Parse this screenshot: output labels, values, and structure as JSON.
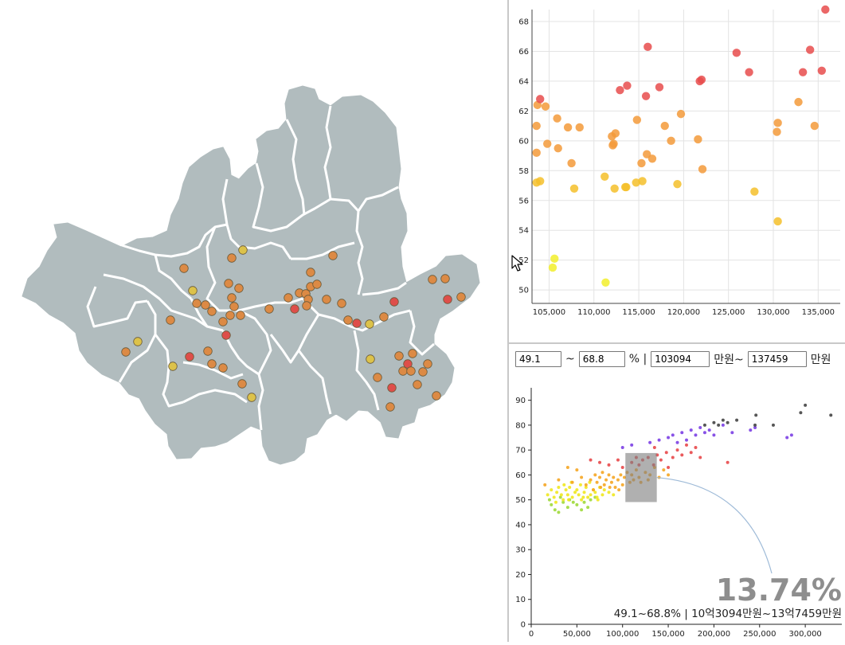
{
  "filters": {
    "pct_min": "49.1",
    "pct_sep": "~",
    "pct_max": "68.8",
    "pct_unit": "% |",
    "price_min": "103094",
    "price_unit_mid": "만원~",
    "price_max": "137459",
    "price_unit_end": "만원"
  },
  "overlay": {
    "percent": "13.74%",
    "caption": "49.1~68.8% | 10억3094만원~13억7459만원"
  },
  "colors": {
    "map_fill": "#b1bcbe",
    "map_border": "#ffffff",
    "grid": "#e3e3e3",
    "brush": "#808080",
    "curve": "#9fbbd8"
  },
  "chart_data": [
    {
      "type": "scatter",
      "title": "",
      "xlabel": "",
      "ylabel": "",
      "xlim": [
        103094,
        137459
      ],
      "ylim": [
        49.1,
        68.8
      ],
      "xticks": [
        "105,000",
        "110,000",
        "115,000",
        "120,000",
        "125,000",
        "130,000",
        "135,000"
      ],
      "xtick_values": [
        105000,
        110000,
        115000,
        120000,
        125000,
        130000,
        135000
      ],
      "yticks": [
        "50",
        "52",
        "54",
        "56",
        "58",
        "60",
        "62",
        "64",
        "66",
        "68"
      ],
      "ytick_values": [
        50,
        52,
        54,
        56,
        58,
        60,
        62,
        64,
        66,
        68
      ],
      "grid": true,
      "points": [
        [
          103600,
          59.2
        ],
        [
          103600,
          61.0
        ],
        [
          103700,
          62.4
        ],
        [
          103600,
          57.2
        ],
        [
          104000,
          57.3
        ],
        [
          104000,
          62.8
        ],
        [
          104600,
          62.3
        ],
        [
          104800,
          59.8
        ],
        [
          105600,
          52.1
        ],
        [
          105400,
          51.5
        ],
        [
          105900,
          61.5
        ],
        [
          106000,
          59.5
        ],
        [
          107100,
          60.9
        ],
        [
          107500,
          58.5
        ],
        [
          107800,
          56.8
        ],
        [
          108400,
          60.9
        ],
        [
          111300,
          50.5
        ],
        [
          111200,
          57.6
        ],
        [
          112000,
          60.3
        ],
        [
          112100,
          59.7
        ],
        [
          112200,
          59.8
        ],
        [
          112400,
          60.5
        ],
        [
          112300,
          56.8
        ],
        [
          112900,
          63.4
        ],
        [
          113500,
          56.9
        ],
        [
          113700,
          63.7
        ],
        [
          113600,
          56.9
        ],
        [
          114700,
          57.2
        ],
        [
          114800,
          61.4
        ],
        [
          115300,
          58.5
        ],
        [
          115400,
          57.3
        ],
        [
          115800,
          63.0
        ],
        [
          115900,
          59.1
        ],
        [
          116000,
          66.3
        ],
        [
          116500,
          58.8
        ],
        [
          117300,
          63.6
        ],
        [
          117900,
          61.0
        ],
        [
          118600,
          60.0
        ],
        [
          119300,
          57.1
        ],
        [
          119700,
          61.8
        ],
        [
          121600,
          60.1
        ],
        [
          121800,
          64.0
        ],
        [
          122000,
          64.1
        ],
        [
          122100,
          58.1
        ],
        [
          125900,
          65.9
        ],
        [
          127300,
          64.6
        ],
        [
          127900,
          56.6
        ],
        [
          130500,
          61.2
        ],
        [
          130400,
          60.6
        ],
        [
          130500,
          54.6
        ],
        [
          132800,
          62.6
        ],
        [
          133300,
          64.6
        ],
        [
          134100,
          66.1
        ],
        [
          134600,
          61.0
        ],
        [
          135400,
          64.7
        ],
        [
          135800,
          68.8
        ]
      ],
      "color_scale": "yellow-orange-red by value"
    },
    {
      "type": "scatter",
      "title": "",
      "xlabel": "",
      "ylabel": "",
      "xlim": [
        0,
        340000
      ],
      "ylim": [
        0,
        95
      ],
      "xticks": [
        "0",
        "50,000",
        "100,000",
        "150,000",
        "200,000",
        "250,000",
        "300,000"
      ],
      "xtick_values": [
        0,
        50000,
        100000,
        150000,
        200000,
        250000,
        300000
      ],
      "yticks": [
        "0",
        "10",
        "20",
        "30",
        "40",
        "50",
        "60",
        "70",
        "80",
        "90"
      ],
      "ytick_values": [
        0,
        10,
        20,
        30,
        40,
        50,
        60,
        70,
        80,
        90
      ],
      "grid": false,
      "brush": {
        "x": [
          103094,
          137459
        ],
        "y": [
          49.1,
          68.8
        ]
      },
      "series": [
        {
          "name": "green",
          "color": "#9ed93a",
          "points": [
            [
              22000,
              48
            ],
            [
              26000,
              46
            ],
            [
              30000,
              45
            ],
            [
              35000,
              49
            ],
            [
              40000,
              47
            ],
            [
              42000,
              50
            ],
            [
              50000,
              48
            ],
            [
              55000,
              46
            ],
            [
              58000,
              49
            ],
            [
              65000,
              50
            ],
            [
              20000,
              50
            ],
            [
              32000,
              51
            ],
            [
              46000,
              49
            ],
            [
              62000,
              47
            ],
            [
              70000,
              51
            ]
          ]
        },
        {
          "name": "yellow",
          "color": "#f0e820",
          "points": [
            [
              18000,
              52
            ],
            [
              22000,
              54
            ],
            [
              25000,
              51
            ],
            [
              28000,
              53
            ],
            [
              30000,
              55
            ],
            [
              33000,
              52
            ],
            [
              35000,
              50
            ],
            [
              38000,
              54
            ],
            [
              40000,
              52
            ],
            [
              42000,
              55
            ],
            [
              45000,
              51
            ],
            [
              48000,
              53
            ],
            [
              50000,
              54
            ],
            [
              52000,
              52
            ],
            [
              55000,
              50
            ],
            [
              58000,
              53
            ],
            [
              60000,
              55
            ],
            [
              62000,
              51
            ],
            [
              65000,
              52
            ],
            [
              68000,
              54
            ],
            [
              70000,
              53
            ],
            [
              72000,
              51
            ],
            [
              75000,
              55
            ],
            [
              78000,
              52
            ],
            [
              80000,
              54
            ],
            [
              85000,
              53
            ],
            [
              90000,
              52
            ],
            [
              36000,
              56
            ],
            [
              44000,
              57
            ],
            [
              54000,
              56
            ],
            [
              64000,
              57
            ],
            [
              27000,
              49
            ],
            [
              41000,
              50
            ],
            [
              57000,
              51
            ],
            [
              73000,
              50
            ]
          ]
        },
        {
          "name": "orange",
          "color": "#f5a623",
          "points": [
            [
              15000,
              56
            ],
            [
              30000,
              58
            ],
            [
              45000,
              57
            ],
            [
              55000,
              59
            ],
            [
              60000,
              56
            ],
            [
              65000,
              58
            ],
            [
              70000,
              60
            ],
            [
              72000,
              57
            ],
            [
              75000,
              59
            ],
            [
              78000,
              61
            ],
            [
              80000,
              56
            ],
            [
              82000,
              58
            ],
            [
              85000,
              60
            ],
            [
              88000,
              57
            ],
            [
              90000,
              59
            ],
            [
              92000,
              55
            ],
            [
              95000,
              58
            ],
            [
              98000,
              60
            ],
            [
              100000,
              56
            ],
            [
              102000,
              59
            ],
            [
              105000,
              61
            ],
            [
              108000,
              57
            ],
            [
              110000,
              60
            ],
            [
              112000,
              58
            ],
            [
              115000,
              62
            ],
            [
              118000,
              59
            ],
            [
              120000,
              57
            ],
            [
              125000,
              61
            ],
            [
              128000,
              58
            ],
            [
              130000,
              60
            ],
            [
              135000,
              63
            ],
            [
              140000,
              59
            ],
            [
              145000,
              62
            ],
            [
              150000,
              60
            ],
            [
              40000,
              63
            ],
            [
              50000,
              62
            ],
            [
              68000,
              54
            ],
            [
              86000,
              55
            ],
            [
              96000,
              54
            ],
            [
              76000,
              55
            ]
          ]
        },
        {
          "name": "red",
          "color": "#e8484a",
          "points": [
            [
              65000,
              66
            ],
            [
              75000,
              65
            ],
            [
              85000,
              64
            ],
            [
              95000,
              66
            ],
            [
              100000,
              63
            ],
            [
              110000,
              65
            ],
            [
              115000,
              67
            ],
            [
              118000,
              64
            ],
            [
              122000,
              66
            ],
            [
              128000,
              67
            ],
            [
              134000,
              64
            ],
            [
              138000,
              68
            ],
            [
              142000,
              66
            ],
            [
              148000,
              69
            ],
            [
              155000,
              67
            ],
            [
              160000,
              70
            ],
            [
              165000,
              68
            ],
            [
              170000,
              72
            ],
            [
              175000,
              69
            ],
            [
              180000,
              71
            ],
            [
              185000,
              67
            ],
            [
              215000,
              65
            ],
            [
              150000,
              63
            ],
            [
              135000,
              71
            ]
          ]
        },
        {
          "name": "purple",
          "color": "#7b3fe4",
          "points": [
            [
              130000,
              73
            ],
            [
              140000,
              74
            ],
            [
              150000,
              75
            ],
            [
              155000,
              76
            ],
            [
              160000,
              73
            ],
            [
              165000,
              77
            ],
            [
              170000,
              74
            ],
            [
              175000,
              78
            ],
            [
              180000,
              76
            ],
            [
              185000,
              79
            ],
            [
              190000,
              77
            ],
            [
              195000,
              78
            ],
            [
              200000,
              76
            ],
            [
              210000,
              80
            ],
            [
              220000,
              77
            ],
            [
              240000,
              78
            ],
            [
              245000,
              79
            ],
            [
              280000,
              75
            ],
            [
              285000,
              76
            ],
            [
              100000,
              71
            ],
            [
              110000,
              72
            ]
          ]
        },
        {
          "name": "dark",
          "color": "#444444",
          "points": [
            [
              190000,
              80
            ],
            [
              200000,
              81
            ],
            [
              205000,
              80
            ],
            [
              215000,
              81
            ],
            [
              225000,
              82
            ],
            [
              245000,
              80
            ],
            [
              246000,
              84
            ],
            [
              265000,
              80
            ],
            [
              295000,
              85
            ],
            [
              300000,
              88
            ],
            [
              328000,
              84
            ],
            [
              210000,
              82
            ]
          ]
        }
      ]
    }
  ],
  "map_markers": [
    [
      305,
      314,
      "y"
    ],
    [
      291,
      324,
      "o"
    ],
    [
      231,
      337,
      "o"
    ],
    [
      242,
      365,
      "y"
    ],
    [
      287,
      356,
      "o"
    ],
    [
      300,
      362,
      "o"
    ],
    [
      291,
      374,
      "o"
    ],
    [
      294,
      385,
      "o"
    ],
    [
      247,
      381,
      "o"
    ],
    [
      258,
      383,
      "o"
    ],
    [
      266,
      391,
      "o"
    ],
    [
      289,
      396,
      "o"
    ],
    [
      302,
      396,
      "o"
    ],
    [
      280,
      404,
      "o"
    ],
    [
      214,
      402,
      "o"
    ],
    [
      284,
      421,
      "r"
    ],
    [
      338,
      388,
      "o"
    ],
    [
      362,
      374,
      "o"
    ],
    [
      376,
      368,
      "o"
    ],
    [
      384,
      369,
      "o"
    ],
    [
      390,
      360,
      "o"
    ],
    [
      398,
      357,
      "o"
    ],
    [
      387,
      376,
      "o"
    ],
    [
      385,
      384,
      "o"
    ],
    [
      370,
      388,
      "r"
    ],
    [
      410,
      376,
      "o"
    ],
    [
      429,
      381,
      "o"
    ],
    [
      418,
      321,
      "o"
    ],
    [
      390,
      342,
      "o"
    ],
    [
      173,
      429,
      "y"
    ],
    [
      158,
      442,
      "o"
    ],
    [
      238,
      448,
      "r"
    ],
    [
      261,
      441,
      "o"
    ],
    [
      266,
      457,
      "o"
    ],
    [
      280,
      462,
      "o"
    ],
    [
      217,
      460,
      "y"
    ],
    [
      304,
      482,
      "o"
    ],
    [
      316,
      499,
      "y"
    ],
    [
      437,
      402,
      "o"
    ],
    [
      448,
      406,
      "r"
    ],
    [
      464,
      407,
      "y"
    ],
    [
      482,
      398,
      "o"
    ],
    [
      495,
      379,
      "r"
    ],
    [
      543,
      351,
      "o"
    ],
    [
      559,
      350,
      "o"
    ],
    [
      562,
      376,
      "r"
    ],
    [
      579,
      373,
      "o"
    ],
    [
      465,
      451,
      "y"
    ],
    [
      501,
      447,
      "o"
    ],
    [
      518,
      444,
      "o"
    ],
    [
      512,
      457,
      "r"
    ],
    [
      506,
      466,
      "o"
    ],
    [
      516,
      466,
      "o"
    ],
    [
      531,
      467,
      "o"
    ],
    [
      537,
      457,
      "o"
    ],
    [
      474,
      474,
      "o"
    ],
    [
      492,
      487,
      "r"
    ],
    [
      524,
      483,
      "o"
    ],
    [
      548,
      497,
      "o"
    ],
    [
      490,
      511,
      "o"
    ]
  ]
}
